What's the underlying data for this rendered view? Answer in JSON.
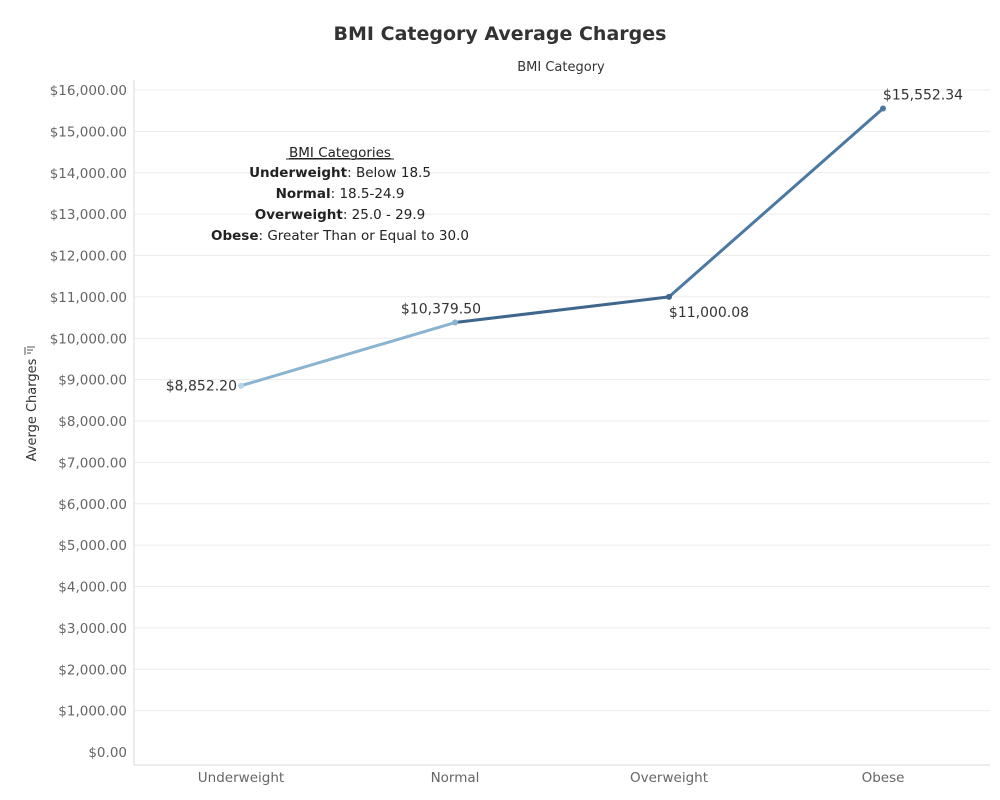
{
  "chart_data": {
    "type": "line",
    "title": "BMI Category Average Charges",
    "column_header": "BMI Category",
    "ylabel": "Averge Charges",
    "ylim": [
      0,
      16000
    ],
    "yticks": [
      0,
      1000,
      2000,
      3000,
      4000,
      5000,
      6000,
      7000,
      8000,
      9000,
      10000,
      11000,
      12000,
      13000,
      14000,
      15000,
      16000
    ],
    "ytick_labels": [
      "$0.00",
      "$1,000.00",
      "$2,000.00",
      "$3,000.00",
      "$4,000.00",
      "$5,000.00",
      "$6,000.00",
      "$7,000.00",
      "$8,000.00",
      "$9,000.00",
      "$10,000.00",
      "$11,000.00",
      "$12,000.00",
      "$13,000.00",
      "$14,000.00",
      "$15,000.00",
      "$16,000.00"
    ],
    "categories": [
      "Underweight",
      "Normal",
      "Overweight",
      "Obese"
    ],
    "values": [
      8852.2,
      10379.5,
      11000.08,
      15552.34
    ],
    "value_labels": [
      "$8,852.20",
      "$10,379.50",
      "$11,000.08",
      "$15,552.34"
    ],
    "point_colors": [
      "#b4d4e7",
      "#8ab4d0",
      "#3f668c",
      "#4b79a3"
    ],
    "grid": true,
    "annotation": {
      "heading": "BMI Categories",
      "lines": [
        {
          "bold": "Underweight",
          "rest": ": Below 18.5"
        },
        {
          "bold": "Normal",
          "rest": ": 18.5-24.9"
        },
        {
          "bold": "Overweight",
          "rest": ": 25.0 - 29.9"
        },
        {
          "bold": "Obese",
          "rest": ": Greater Than or Equal to 30.0"
        }
      ]
    }
  }
}
